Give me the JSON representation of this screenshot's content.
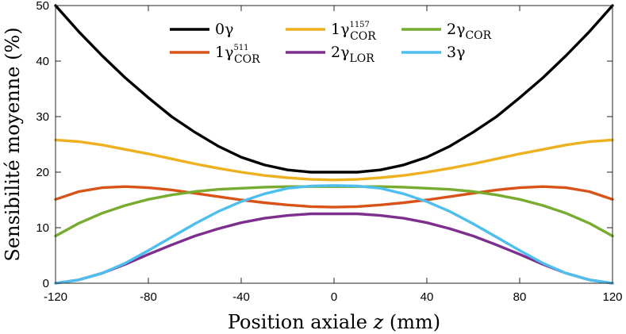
{
  "chart_data": {
    "type": "line",
    "title": "",
    "xlabel": "Position axiale z (mm)",
    "xlabel_main": "Position axiale ",
    "xlabel_var": "z",
    "xlabel_unit": " (mm)",
    "ylabel": "Sensibilité moyenne (%)",
    "xlim": [
      -120,
      120
    ],
    "ylim": [
      0,
      50
    ],
    "xticks": [
      -120,
      -80,
      -40,
      0,
      40,
      80,
      120
    ],
    "yticks": [
      0,
      10,
      20,
      30,
      40,
      50
    ],
    "xtick_labels": [
      "-120",
      "-80",
      "-40",
      "0",
      "40",
      "80",
      "120"
    ],
    "ytick_labels": [
      "0",
      "10",
      "20",
      "30",
      "40",
      "50"
    ],
    "x": [
      -120,
      -110,
      -100,
      -90,
      -80,
      -70,
      -60,
      -50,
      -40,
      -30,
      -20,
      -10,
      0,
      10,
      20,
      30,
      40,
      50,
      60,
      70,
      80,
      90,
      100,
      110,
      120
    ],
    "series": [
      {
        "name": "0γ",
        "label_main": "0γ",
        "label_sub": "",
        "label_sup": "",
        "color": "#000000",
        "values": [
          50,
          45.3,
          41.0,
          37.0,
          33.4,
          30.0,
          27.2,
          24.7,
          22.7,
          21.3,
          20.4,
          20.0,
          20.0,
          20.0,
          20.4,
          21.3,
          22.7,
          24.7,
          27.2,
          30.0,
          33.4,
          37.0,
          41.0,
          45.3,
          50
        ]
      },
      {
        "name": "1γ511 COR",
        "label_main": "1γ",
        "label_sub": "COR",
        "label_sup": "511",
        "color": "#d95319",
        "values": [
          15.1,
          16.5,
          17.2,
          17.4,
          17.2,
          16.8,
          16.2,
          15.6,
          15.0,
          14.5,
          14.1,
          13.8,
          13.7,
          13.8,
          14.1,
          14.5,
          15.0,
          15.6,
          16.2,
          16.8,
          17.2,
          17.4,
          17.2,
          16.5,
          15.1
        ]
      },
      {
        "name": "1γ1157 COR",
        "label_main": "1γ",
        "label_sub": "COR",
        "label_sup": "1157",
        "color": "#edb120",
        "values": [
          25.8,
          25.5,
          24.9,
          24.1,
          23.3,
          22.4,
          21.5,
          20.7,
          20.0,
          19.4,
          19.0,
          18.7,
          18.6,
          18.7,
          19.0,
          19.4,
          20.0,
          20.7,
          21.5,
          22.4,
          23.3,
          24.1,
          24.9,
          25.5,
          25.8
        ]
      },
      {
        "name": "2γ LOR",
        "label_main": "2γ",
        "label_sub": "LOR",
        "label_sup": "",
        "color": "#7e2f8e",
        "values": [
          0,
          0.6,
          1.8,
          3.4,
          5.2,
          6.9,
          8.5,
          9.8,
          10.9,
          11.7,
          12.2,
          12.5,
          12.5,
          12.5,
          12.2,
          11.7,
          10.9,
          9.8,
          8.5,
          6.9,
          5.2,
          3.4,
          1.8,
          0.6,
          0
        ]
      },
      {
        "name": "2γ COR",
        "label_main": "2γ",
        "label_sub": "COR",
        "label_sup": "",
        "color": "#77ac30",
        "values": [
          8.5,
          10.8,
          12.6,
          14.0,
          15.1,
          15.9,
          16.5,
          16.9,
          17.1,
          17.3,
          17.4,
          17.4,
          17.4,
          17.4,
          17.4,
          17.3,
          17.1,
          16.9,
          16.5,
          15.9,
          15.1,
          14.0,
          12.6,
          10.8,
          8.5
        ]
      },
      {
        "name": "3γ",
        "label_main": "3γ",
        "label_sub": "",
        "label_sup": "",
        "color": "#4dbeee",
        "values": [
          0,
          0.6,
          1.8,
          3.6,
          5.9,
          8.3,
          10.7,
          12.9,
          14.7,
          16.1,
          17.1,
          17.5,
          17.6,
          17.5,
          17.1,
          16.1,
          14.7,
          12.9,
          10.7,
          8.3,
          5.9,
          3.6,
          1.8,
          0.6,
          0
        ]
      }
    ],
    "legend_placement": "top-center",
    "grid": false
  }
}
